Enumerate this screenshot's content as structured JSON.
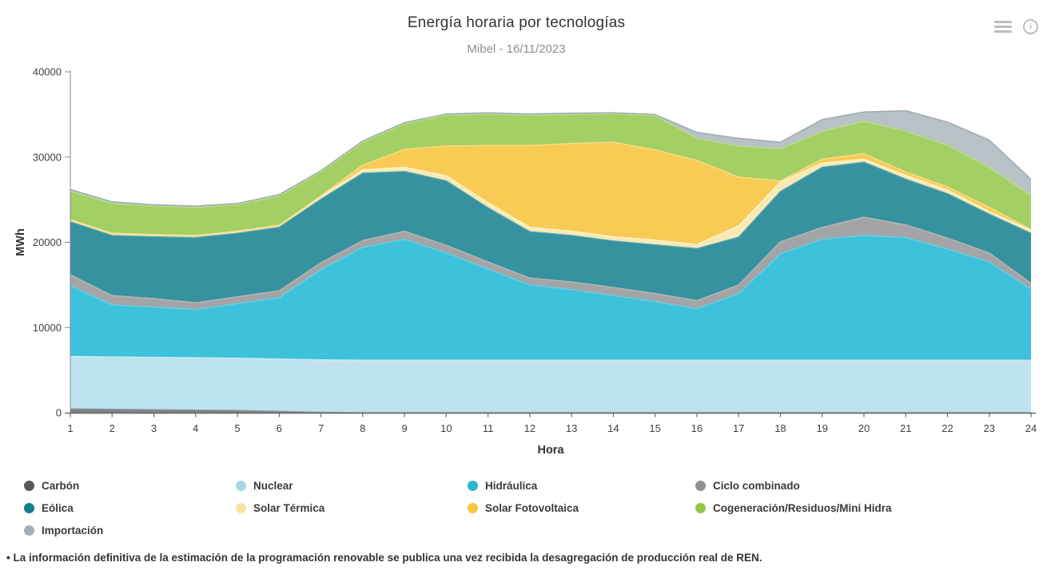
{
  "header": {
    "title": "Energía horaria por tecnologías",
    "subtitle": "Mibel - 16/11/2023"
  },
  "toolbar": {
    "menu_icon": "hamburger-icon",
    "info_icon": "info-icon",
    "icon_color": "#bdbdbd"
  },
  "chart_data": {
    "type": "area",
    "stacked": true,
    "title": "Energía horaria por tecnologías",
    "subtitle": "Mibel - 16/11/2023",
    "xlabel": "Hora",
    "ylabel": "MWh",
    "x": [
      1,
      2,
      3,
      4,
      5,
      6,
      7,
      8,
      9,
      10,
      11,
      12,
      13,
      14,
      15,
      16,
      17,
      18,
      19,
      20,
      21,
      22,
      23,
      24
    ],
    "ylim": [
      0,
      40000
    ],
    "yticks": [
      0,
      10000,
      20000,
      30000,
      40000
    ],
    "grid": false,
    "legend_position": "bottom-left",
    "series": [
      {
        "id": "carbon",
        "name": "Carbón",
        "color": "#58595b",
        "fill": "#7f8183",
        "edge": "#8b8d8f",
        "values": [
          450,
          400,
          350,
          300,
          250,
          150,
          50,
          0,
          0,
          0,
          0,
          0,
          0,
          0,
          0,
          0,
          0,
          0,
          0,
          0,
          0,
          0,
          0,
          0
        ]
      },
      {
        "id": "nuclear",
        "name": "Nuclear",
        "color": "#a6d7e7",
        "fill": "#bce3ee",
        "edge": "#cdeaf2",
        "values": [
          6150,
          6150,
          6150,
          6150,
          6150,
          6150,
          6150,
          6150,
          6150,
          6150,
          6150,
          6150,
          6150,
          6150,
          6150,
          6150,
          6150,
          6150,
          6150,
          6150,
          6150,
          6150,
          6150,
          6150
        ]
      },
      {
        "id": "hidraulica",
        "name": "Hidráulica",
        "color": "#29b7d3",
        "fill": "#3ec1da",
        "edge": "#64cfe4",
        "values": [
          8300,
          6100,
          5900,
          5650,
          6400,
          7200,
          10600,
          13250,
          14200,
          12600,
          10700,
          8850,
          8300,
          7600,
          6900,
          6050,
          7800,
          12500,
          14200,
          14650,
          14400,
          13050,
          11550,
          8350
        ]
      },
      {
        "id": "ciclo-combinado",
        "name": "Ciclo combinado",
        "color": "#8f9091",
        "fill": "#a3a4a5",
        "edge": "#b4b5b6",
        "values": [
          1300,
          1100,
          1000,
          800,
          800,
          800,
          800,
          800,
          950,
          900,
          850,
          800,
          900,
          950,
          950,
          950,
          1050,
          1400,
          1400,
          2150,
          1500,
          1300,
          1050,
          700
        ]
      },
      {
        "id": "eolica",
        "name": "Eólica",
        "color": "#157f8d",
        "fill": "#35929e",
        "edge": "#4da3ae",
        "values": [
          6200,
          7050,
          7250,
          7650,
          7450,
          7450,
          7450,
          7900,
          7000,
          7550,
          6350,
          5450,
          5450,
          5450,
          5700,
          6100,
          5600,
          5900,
          7050,
          6450,
          5350,
          5200,
          4550,
          5850
        ]
      },
      {
        "id": "solar-termica",
        "name": "Solar Térmica",
        "color": "#f7e3a2",
        "fill": "#fae9b4",
        "edge": "#fdf3cf",
        "values": [
          250,
          250,
          250,
          250,
          250,
          250,
          300,
          400,
          500,
          600,
          600,
          500,
          500,
          500,
          550,
          500,
          1300,
          1100,
          500,
          350,
          450,
          450,
          300,
          350
        ]
      },
      {
        "id": "solar-fotovoltaica",
        "name": "Solar Fotovoltaica",
        "color": "#f9c53c",
        "fill": "#f8cb54",
        "edge": "#fbdc85",
        "values": [
          0,
          0,
          0,
          0,
          0,
          0,
          100,
          550,
          2100,
          3500,
          6700,
          9600,
          10300,
          11100,
          10600,
          9850,
          5750,
          150,
          450,
          650,
          400,
          350,
          500,
          100
        ]
      },
      {
        "id": "cogeneracion-residuos-mini-hidra",
        "name": "Cogeneración/Residuos/Mini Hidra",
        "color": "#90c74a",
        "fill": "#a3cf64",
        "edge": "#b9dc8a",
        "values": [
          3350,
          3500,
          3350,
          3300,
          3100,
          3450,
          2800,
          2700,
          3000,
          3600,
          3700,
          3550,
          3400,
          3350,
          4000,
          2600,
          3650,
          3750,
          3250,
          3800,
          4800,
          4900,
          4700,
          4000
        ]
      },
      {
        "id": "importacion",
        "name": "Importación",
        "color": "#a4afb5",
        "fill": "#b7c1c6",
        "edge": "#9fabb1",
        "values": [
          200,
          200,
          150,
          150,
          150,
          150,
          150,
          150,
          150,
          150,
          150,
          150,
          150,
          100,
          150,
          700,
          900,
          800,
          1400,
          1100,
          2400,
          2700,
          3200,
          1900
        ]
      }
    ]
  },
  "legend": {
    "order": [
      "carbon",
      "nuclear",
      "hidraulica",
      "ciclo-combinado",
      "eolica",
      "solar-termica",
      "solar-fotovoltaica",
      "cogeneracion-residuos-mini-hidra",
      "importacion"
    ]
  },
  "axes": {
    "x_label": "Hora",
    "y_label": "MWh",
    "x_tick_labels": [
      "1",
      "2",
      "3",
      "4",
      "5",
      "6",
      "7",
      "8",
      "9",
      "10",
      "11",
      "12",
      "13",
      "14",
      "15",
      "16",
      "17",
      "18",
      "19",
      "20",
      "21",
      "22",
      "23",
      "24"
    ],
    "y_tick_labels": [
      "0",
      "10000",
      "20000",
      "30000",
      "40000"
    ],
    "tick_color": "#6b6b6b",
    "label_color": "#404040"
  },
  "footnote": "• La información definitiva de la estimación de la programación renovable se publica una vez recibida la desagregación de producción real de REN."
}
